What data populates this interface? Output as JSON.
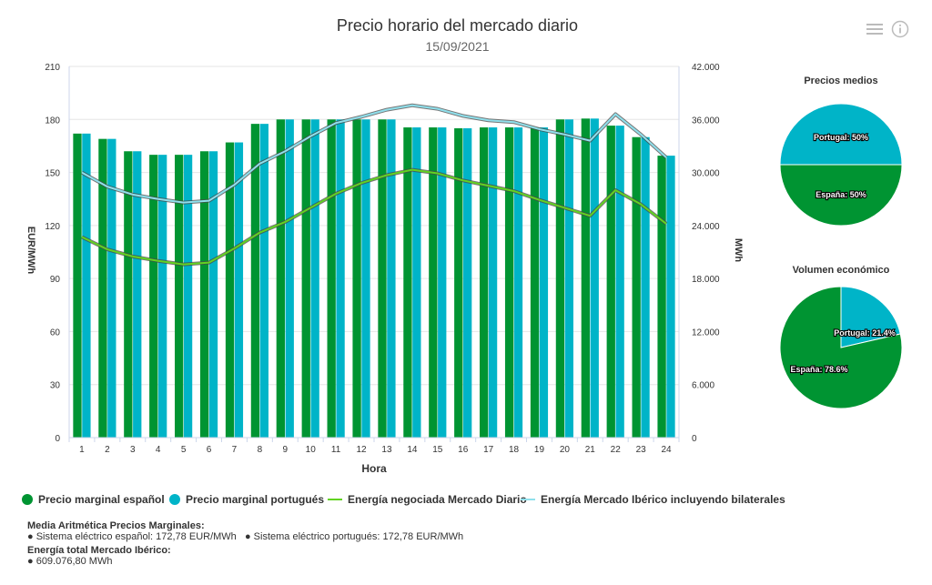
{
  "header": {
    "title": "Precio horario del mercado diario",
    "subtitle": "15/09/2021",
    "menu_icon": "hamburger-menu-icon",
    "info_icon": "info-icon"
  },
  "chart_data": [
    {
      "type": "bar",
      "xlabel": "Hora",
      "ylabel": "EUR/MWh",
      "ylabel_right": "MWh",
      "ylim": [
        0,
        210
      ],
      "ylim_right": [
        0,
        42000
      ],
      "yticks": [
        "0",
        "30",
        "60",
        "90",
        "120",
        "150",
        "180",
        "210"
      ],
      "yticks_right": [
        "0",
        "6.000",
        "12.000",
        "18.000",
        "24.000",
        "30.000",
        "36.000",
        "42.000"
      ],
      "categories": [
        "1",
        "2",
        "3",
        "4",
        "5",
        "6",
        "7",
        "8",
        "9",
        "10",
        "11",
        "12",
        "13",
        "14",
        "15",
        "16",
        "17",
        "18",
        "19",
        "20",
        "21",
        "22",
        "23",
        "24"
      ],
      "grid": true,
      "legend_position": "bottom",
      "series": [
        {
          "name": "Precio marginal español",
          "type": "bar",
          "axis": "left",
          "color": "#009432",
          "values": [
            172,
            169,
            162,
            160,
            160,
            162,
            167,
            177.5,
            180,
            180,
            180,
            180,
            180,
            175.5,
            175.5,
            175,
            175.5,
            175.5,
            175.5,
            180,
            180.5,
            176.5,
            170,
            159.5
          ]
        },
        {
          "name": "Precio marginal portugués",
          "type": "bar",
          "axis": "left",
          "color": "#00b4c8",
          "values": [
            172,
            169,
            162,
            160,
            160,
            162,
            167,
            177.5,
            180,
            180,
            180,
            180,
            180,
            175.5,
            175.5,
            175,
            175.5,
            175.5,
            175.5,
            180,
            180.5,
            176.5,
            170,
            159.5
          ]
        },
        {
          "name": "Energía negociada Mercado Diario",
          "type": "line",
          "axis": "right",
          "color": "#62d321",
          "values": [
            22700,
            21300,
            20500,
            20000,
            19600,
            19800,
            21400,
            23200,
            24400,
            26000,
            27600,
            28800,
            29700,
            30300,
            29900,
            29100,
            28500,
            27900,
            26900,
            26000,
            25100,
            28000,
            26400,
            24200
          ]
        },
        {
          "name": "Energía Mercado Ibérico incluyendo bilaterales",
          "type": "line",
          "axis": "right",
          "color": "#8fe0ec",
          "values": [
            30000,
            28400,
            27500,
            27000,
            26600,
            26800,
            28600,
            31000,
            32400,
            34100,
            35600,
            36300,
            37100,
            37600,
            37200,
            36400,
            35900,
            35700,
            34900,
            34300,
            33600,
            36600,
            34300,
            31700
          ]
        }
      ]
    },
    {
      "type": "pie",
      "title": "Precios medios",
      "categories": [
        "Portugal",
        "España"
      ],
      "values": [
        50,
        50
      ],
      "labels": [
        "Portugal: 50%",
        "España: 50%"
      ],
      "colors": [
        "#00b4c8",
        "#009432"
      ]
    },
    {
      "type": "pie",
      "title": "Volumen económico",
      "categories": [
        "Portugal",
        "España"
      ],
      "values": [
        21.4,
        78.6
      ],
      "labels": [
        "Portugal: 21.4%",
        "España: 78.6%"
      ],
      "colors": [
        "#00b4c8",
        "#009432"
      ]
    }
  ],
  "footer": {
    "media_title": "Media Aritmética Precios Marginales:",
    "media_es": "● Sistema eléctrico español: 172,78 EUR/MWh",
    "media_pt": "● Sistema eléctrico portugués: 172,78 EUR/MWh",
    "energia_title": "Energía total Mercado Ibérico:",
    "energia_value": "● 609.076,80 MWh"
  }
}
